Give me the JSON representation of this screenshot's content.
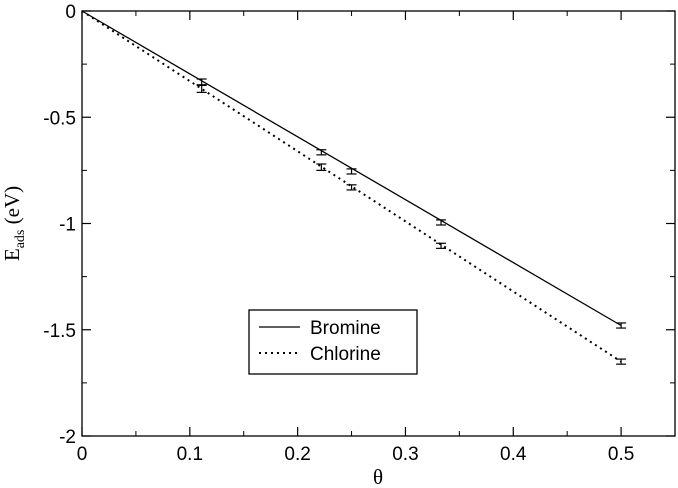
{
  "chart_data": {
    "type": "line",
    "xlabel": "θ",
    "ylabel": {
      "main": "E",
      "sub": "ads",
      "rest": " (eV)"
    },
    "xlim": [
      0,
      0.55
    ],
    "ylim": [
      -2,
      0
    ],
    "xticks": [
      "0",
      "0.1",
      "0.2",
      "0.3",
      "0.4",
      "0.5"
    ],
    "yticks": [
      "0",
      "-0.5",
      "-1",
      "-1.5",
      "-2"
    ],
    "grid": false,
    "legend_position": "lower-center",
    "series": [
      {
        "name": "Bromine",
        "style": "solid",
        "line": [
          [
            0,
            0
          ],
          [
            0.5,
            -1.48
          ]
        ],
        "points": [
          {
            "x": 0.111,
            "y": -0.335,
            "err": 0.015
          },
          {
            "x": 0.222,
            "y": -0.665,
            "err": 0.012
          },
          {
            "x": 0.25,
            "y": -0.755,
            "err": 0.012
          },
          {
            "x": 0.333,
            "y": -0.995,
            "err": 0.012
          },
          {
            "x": 0.5,
            "y": -1.48,
            "err": 0.012
          }
        ]
      },
      {
        "name": "Chlorine",
        "style": "dotted",
        "line": [
          [
            0,
            0
          ],
          [
            0.5,
            -1.65
          ]
        ],
        "points": [
          {
            "x": 0.111,
            "y": -0.365,
            "err": 0.018
          },
          {
            "x": 0.222,
            "y": -0.735,
            "err": 0.015
          },
          {
            "x": 0.25,
            "y": -0.83,
            "err": 0.012
          },
          {
            "x": 0.333,
            "y": -1.105,
            "err": 0.012
          },
          {
            "x": 0.5,
            "y": -1.65,
            "err": 0.012
          }
        ]
      }
    ]
  }
}
